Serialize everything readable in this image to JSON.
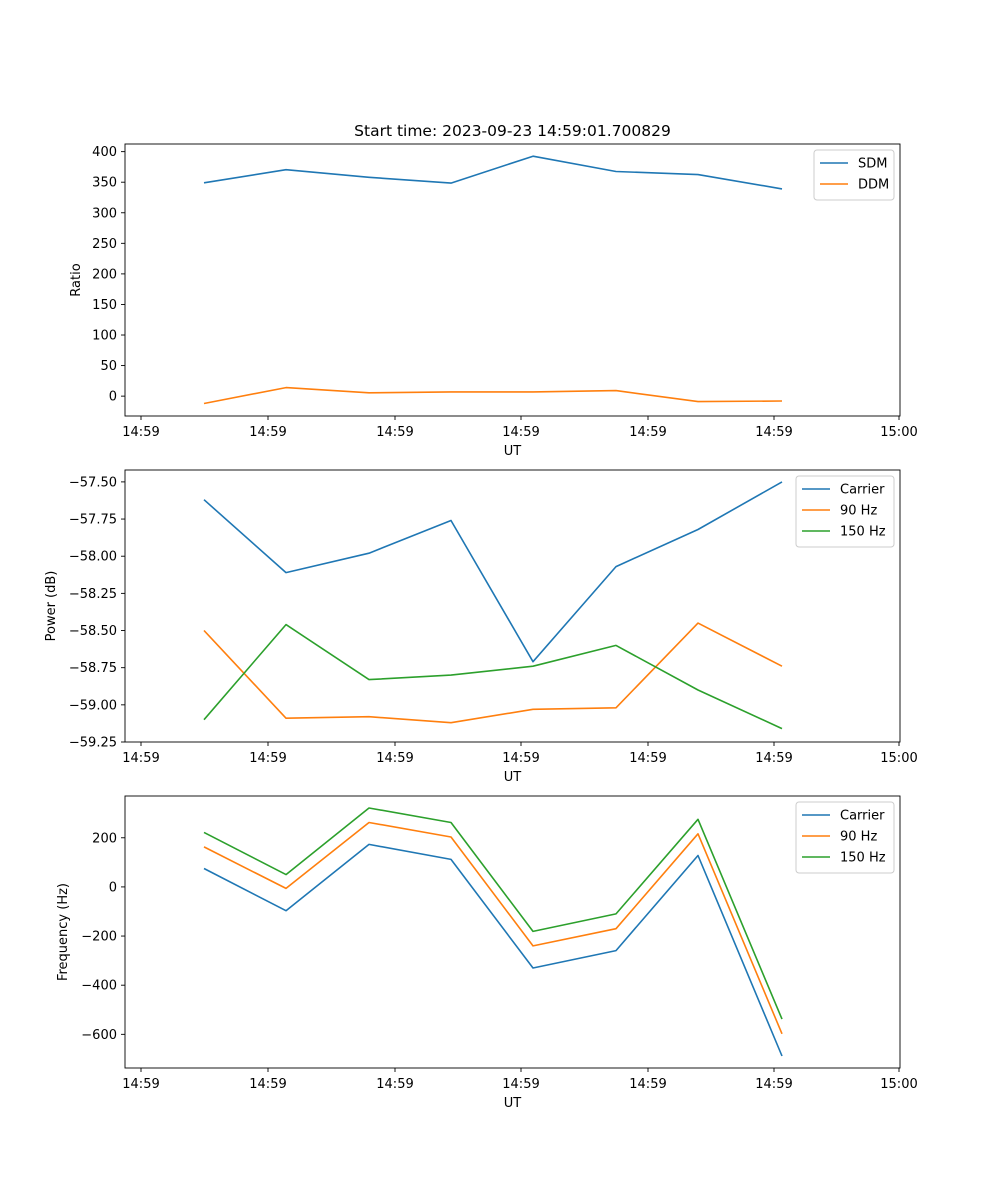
{
  "title": "Start time: 2023-09-23 14:59:01.700829",
  "colors": {
    "blue": "#1f77b4",
    "orange": "#ff7f0e",
    "green": "#2ca02c"
  },
  "chart_data": [
    {
      "type": "line",
      "title": "Start time: 2023-09-23 14:59:01.700829",
      "xlabel": "UT",
      "ylabel": "Ratio",
      "x_tick_labels": [
        "14:59",
        "14:59",
        "14:59",
        "14:59",
        "14:59",
        "14:59",
        "15:00"
      ],
      "y_ticks": [
        0,
        50,
        100,
        150,
        200,
        250,
        300,
        350,
        400
      ],
      "y_tick_labels": [
        "0",
        "50",
        "100",
        "150",
        "200",
        "250",
        "300",
        "350",
        "400"
      ],
      "ylim": [
        -32.5,
        412.5
      ],
      "legend": "top-right",
      "series": [
        {
          "name": "SDM",
          "color": "#1f77b4",
          "values": [
            349,
            370.5,
            358,
            348.5,
            392.5,
            367.5,
            362.5,
            339
          ]
        },
        {
          "name": "DDM",
          "color": "#ff7f0e",
          "values": [
            -12,
            14,
            5.5,
            7,
            7,
            9,
            -9,
            -8
          ]
        }
      ]
    },
    {
      "type": "line",
      "xlabel": "UT",
      "ylabel": "Power (dB)",
      "x_tick_labels": [
        "14:59",
        "14:59",
        "14:59",
        "14:59",
        "14:59",
        "14:59",
        "15:00"
      ],
      "y_ticks": [
        -59.25,
        -59.0,
        -58.75,
        -58.5,
        -58.25,
        -58.0,
        -57.75,
        -57.5
      ],
      "y_tick_labels": [
        "−59.25",
        "−59.00",
        "−58.75",
        "−58.50",
        "−58.25",
        "−58.00",
        "−57.75",
        "−57.50"
      ],
      "ylim": [
        -59.25,
        -57.42
      ],
      "legend": "top-right",
      "series": [
        {
          "name": "Carrier",
          "color": "#1f77b4",
          "values": [
            -57.62,
            -58.11,
            -57.98,
            -57.76,
            -58.71,
            -58.07,
            -57.82,
            -57.5
          ]
        },
        {
          "name": "90 Hz",
          "color": "#ff7f0e",
          "values": [
            -58.5,
            -59.09,
            -59.08,
            -59.12,
            -59.03,
            -59.02,
            -58.45,
            -58.74
          ]
        },
        {
          "name": "150 Hz",
          "color": "#2ca02c",
          "values": [
            -59.1,
            -58.46,
            -58.83,
            -58.8,
            -58.74,
            -58.6,
            -58.9,
            -59.16
          ]
        }
      ]
    },
    {
      "type": "line",
      "xlabel": "UT",
      "ylabel": "Frequency (Hz)",
      "x_tick_labels": [
        "14:59",
        "14:59",
        "14:59",
        "14:59",
        "14:59",
        "14:59",
        "15:00"
      ],
      "y_ticks": [
        -600,
        -400,
        -200,
        0,
        200
      ],
      "y_tick_labels": [
        "−600",
        "−400",
        "−200",
        "0",
        "200"
      ],
      "ylim": [
        -737,
        370
      ],
      "legend": "top-right",
      "series": [
        {
          "name": "Carrier",
          "color": "#1f77b4",
          "values": [
            75,
            -97,
            173,
            112,
            -330,
            -259,
            128,
            -688
          ]
        },
        {
          "name": "90 Hz",
          "color": "#ff7f0e",
          "values": [
            163,
            -6,
            262,
            203,
            -240,
            -170,
            216,
            -598
          ]
        },
        {
          "name": "150 Hz",
          "color": "#2ca02c",
          "values": [
            222,
            50,
            321,
            262,
            -181,
            -110,
            275,
            -538
          ]
        }
      ]
    }
  ]
}
